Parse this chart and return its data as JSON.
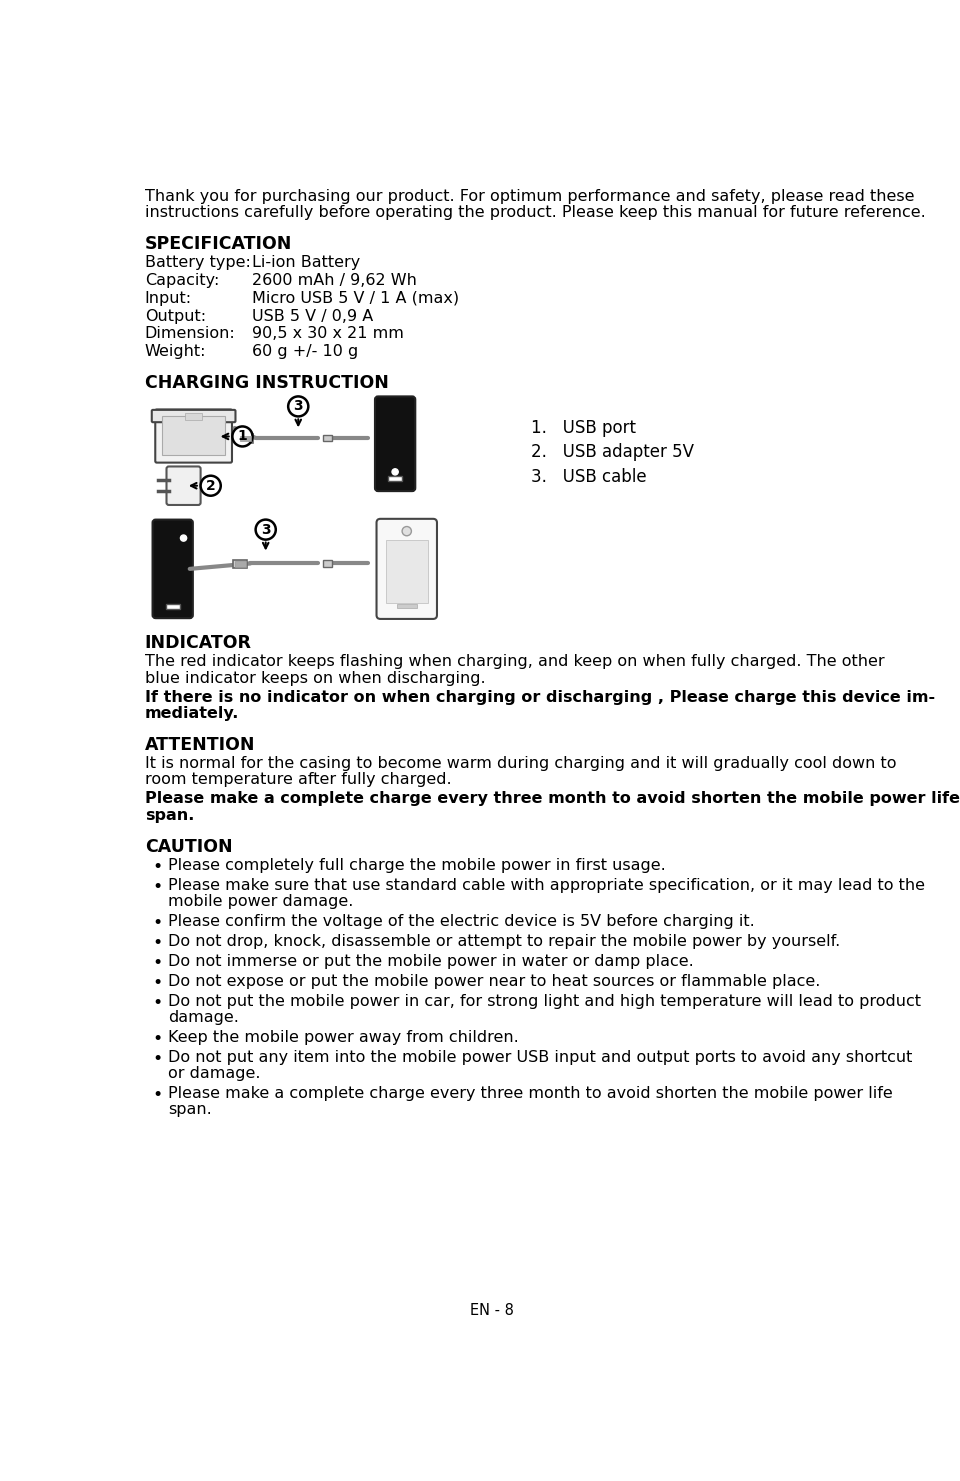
{
  "bg_color": "#ffffff",
  "text_color": "#000000",
  "intro_text_line1": "Thank you for purchasing our product. For optimum performance and safety, please read these",
  "intro_text_line2": "instructions carefully before operating the product. Please keep this manual for future reference.",
  "spec_title": "SPECIFICATION",
  "spec_items": [
    [
      "Battery type:",
      "Li-ion Battery"
    ],
    [
      "Capacity:",
      "2600 mAh / 9,62 Wh"
    ],
    [
      "Input:",
      "Micro USB 5 V / 1 A (max)"
    ],
    [
      "Output:",
      "USB 5 V / 0,9 A"
    ],
    [
      "Dimension:",
      "90,5 x 30 x 21 mm"
    ],
    [
      "Weight:",
      "60 g +/- 10 g"
    ]
  ],
  "charging_title": "CHARGING INSTRUCTION",
  "indicator_title": "INDICATOR",
  "indicator_text1": "The red indicator keeps flashing when charging, and keep on when fully charged. The other",
  "indicator_text2": "blue indicator keeps on when discharging.",
  "indicator_bold1": "If there is no indicator on when charging or discharging , Please charge this device im-",
  "indicator_bold2": "mediately.",
  "attention_title": "ATTENTION",
  "attention_text1": "It is normal for the casing to become warm during charging and it will gradually cool down to",
  "attention_text2": "room temperature after fully charged.",
  "attention_bold1": "Please make a complete charge every three month to avoid shorten the mobile power life",
  "attention_bold2": "span.",
  "caution_title": "CAUTION",
  "caution_items": [
    "Please completely full charge the mobile power in first usage.",
    "Please make sure that use standard cable with appropriate specification, or it may lead to the\nmobile power damage.",
    "Please confirm the voltage of the electric device is 5V before charging it.",
    "Do not drop, knock, disassemble or attempt to repair the mobile power by yourself.",
    "Do not immerse or put the mobile power in water or damp place.",
    "Do not expose or put the mobile power near to heat sources or flammable place.",
    "Do not put the mobile power in car, for strong light and high temperature will lead to product\ndamage.",
    "Keep the mobile power away from children.",
    "Do not put any item into the mobile power USB input and output ports to avoid any shortcut\nor damage.",
    "Please make a complete charge every three month to avoid shorten the mobile power life\nspan."
  ],
  "footer": "EN - 8",
  "list_item1": "1.   USB port",
  "list_item2": "2.   USB adapter 5V",
  "list_item3": "3.   USB cable"
}
